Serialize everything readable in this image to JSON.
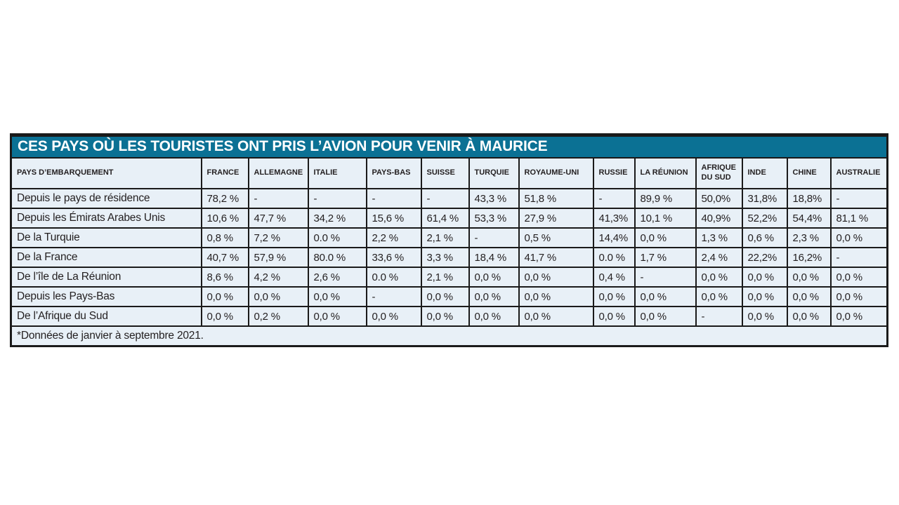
{
  "chart_data": {
    "type": "table",
    "title": "CES PAYS OÙ LES TOURISTES ONT PRIS L’AVION POUR VENIR À MAURICE",
    "row_header": "PAYS D’EMBARQUEMENT",
    "columns": [
      "FRANCE",
      "ALLEMAGNE",
      "ITALIE",
      "PAYS-BAS",
      "SUISSE",
      "TURQUIE",
      "ROYAUME-UNI",
      "RUSSIE",
      "LA RÉUNION",
      "AFRIQUE DU SUD",
      "INDE",
      "CHINE",
      "AUSTRALIE"
    ],
    "rows": [
      {
        "label": "Depuis le pays de résidence",
        "values": [
          "78,2 %",
          "-",
          "-",
          "-",
          "-",
          "43,3 %",
          "51,8 %",
          "-",
          "89,9 %",
          "50,0%",
          "31,8%",
          "18,8%",
          "-"
        ]
      },
      {
        "label": "Depuis les Émirats Arabes Unis",
        "values": [
          "10,6 %",
          "47,7 %",
          "34,2 %",
          "15,6 %",
          "61,4 %",
          "53,3 %",
          "27,9 %",
          "41,3%",
          "10,1 %",
          "40,9%",
          "52,2%",
          "54,4%",
          "81,1 %"
        ]
      },
      {
        "label": "De la Turquie",
        "values": [
          "0,8 %",
          "7,2 %",
          "0.0 %",
          "2,2 %",
          "2,1 %",
          "-",
          "0,5 %",
          "14,4%",
          "0,0 %",
          "1,3 %",
          "0,6 %",
          "2,3 %",
          "0,0 %"
        ]
      },
      {
        "label": "De la France",
        "values": [
          "40,7 %",
          "57,9 %",
          "80.0 %",
          "33,6 %",
          "3,3 %",
          "18,4 %",
          "41,7 %",
          "0.0 %",
          "1,7 %",
          "2,4 %",
          "22,2%",
          "16,2%",
          "-"
        ]
      },
      {
        "label": "De l’île de La Réunion",
        "values": [
          "8,6 %",
          "4,2 %",
          "2,6 %",
          "0.0 %",
          "2,1 %",
          "0,0 %",
          "0,0 %",
          "0,4 %",
          "-",
          "0,0 %",
          "0,0 %",
          "0,0 %",
          "0,0 %"
        ]
      },
      {
        "label": "Depuis les Pays-Bas",
        "values": [
          "0,0 %",
          "0,0 %",
          "0,0 %",
          "-",
          "0,0 %",
          "0,0 %",
          "0,0 %",
          "0,0 %",
          "0,0 %",
          "0,0 %",
          "0,0 %",
          "0,0 %",
          "0,0 %"
        ]
      },
      {
        "label": "De l’Afrique du Sud",
        "values": [
          "0,0 %",
          "0,2 %",
          "0,0 %",
          "0,0 %",
          "0,0 %",
          "0,0 %",
          "0,0 %",
          "0,0 %",
          "0,0 %",
          "-",
          "0,0 %",
          "0,0 %",
          "0,0 %"
        ]
      }
    ],
    "footnote": "*Données de janvier à septembre 2021.",
    "layout_hints": {
      "grid": "on",
      "legend": "none"
    }
  },
  "colors": {
    "title_bg": "#0b7194",
    "title_text": "#ffffff",
    "cell_bg": "#e8f0f7",
    "border": "#1a1a1a",
    "text": "#231f20"
  }
}
